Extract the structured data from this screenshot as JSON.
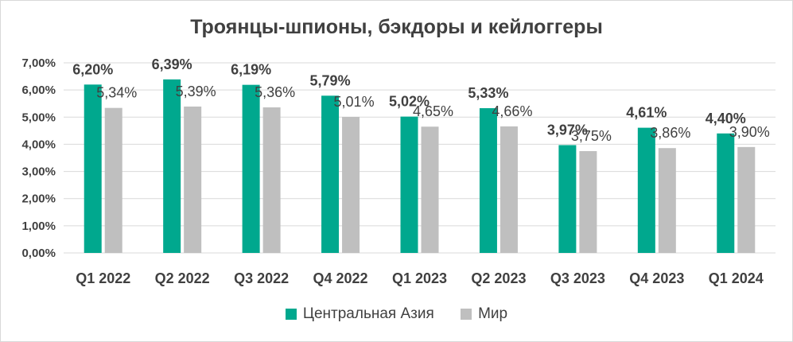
{
  "chart_data": {
    "type": "bar",
    "title": "Троянцы-шпионы, бэкдоры и кейлоггеры",
    "categories": [
      "Q1 2022",
      "Q2 2022",
      "Q3 2022",
      "Q4 2022",
      "Q1 2023",
      "Q2 2023",
      "Q3 2023",
      "Q4 2023",
      "Q1 2024"
    ],
    "series": [
      {
        "name": "Центральная Азия",
        "color": "#00a88e",
        "values": [
          6.2,
          6.39,
          6.19,
          5.79,
          5.02,
          5.33,
          3.97,
          4.61,
          4.4
        ],
        "labels": [
          "6,20%",
          "6,39%",
          "6,19%",
          "5,79%",
          "5,02%",
          "5,33%",
          "3,97%",
          "4,61%",
          "4,40%"
        ]
      },
      {
        "name": "Мир",
        "color": "#bfbfbf",
        "values": [
          5.34,
          5.39,
          5.36,
          5.01,
          4.65,
          4.66,
          3.75,
          3.86,
          3.9
        ],
        "labels": [
          "5,34%",
          "5,39%",
          "5,36%",
          "5,01%",
          "4,65%",
          "4,66%",
          "3,75%",
          "3,86%",
          "3,90%"
        ]
      }
    ],
    "yticks": [
      "0,00%",
      "1,00%",
      "2,00%",
      "3,00%",
      "4,00%",
      "5,00%",
      "6,00%",
      "7,00%"
    ],
    "ylim": [
      0,
      7
    ],
    "xlabel": "",
    "ylabel": "",
    "grid": true,
    "legend_position": "bottom"
  }
}
